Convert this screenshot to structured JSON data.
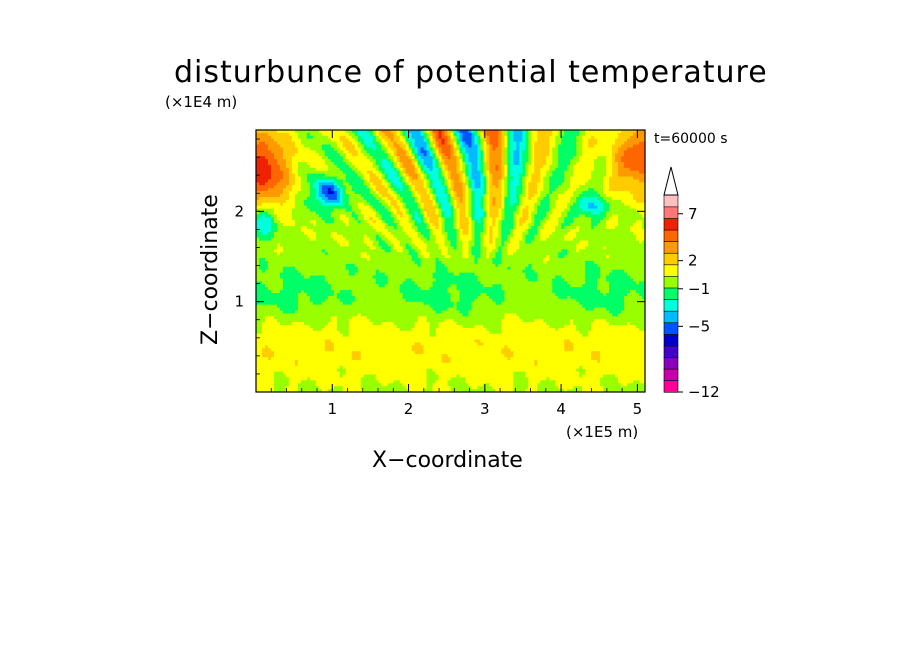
{
  "chart_data": {
    "type": "heatmap",
    "title": "disturbunce of potential temperature",
    "xlabel": "X−coordinate",
    "ylabel": "Z−coordinate",
    "x_factor": "(×1E5 m)",
    "y_factor": "(×1E4 m)",
    "timestamp": "t=60000 s",
    "xlim": [
      0,
      5.1
    ],
    "ylim": [
      0,
      2.9
    ],
    "x_ticks": [
      "1",
      "2",
      "3",
      "4",
      "5"
    ],
    "y_ticks": [
      "1",
      "2"
    ],
    "colorbar": {
      "labels": [
        "7",
        "2",
        "−1",
        "−5",
        "−12"
      ],
      "levels": [
        7,
        2,
        -1,
        -5,
        -12
      ],
      "colors": [
        "#ff0099",
        "#cc00aa",
        "#8800bb",
        "#4400cc",
        "#0000cc",
        "#0055ff",
        "#00bbff",
        "#00ffdd",
        "#00ff66",
        "#99ff00",
        "#ffff00",
        "#ffcc00",
        "#ff9900",
        "#ff6600",
        "#ee2200",
        "#ff7777",
        "#ffc0c0",
        "#ffffff"
      ]
    }
  }
}
